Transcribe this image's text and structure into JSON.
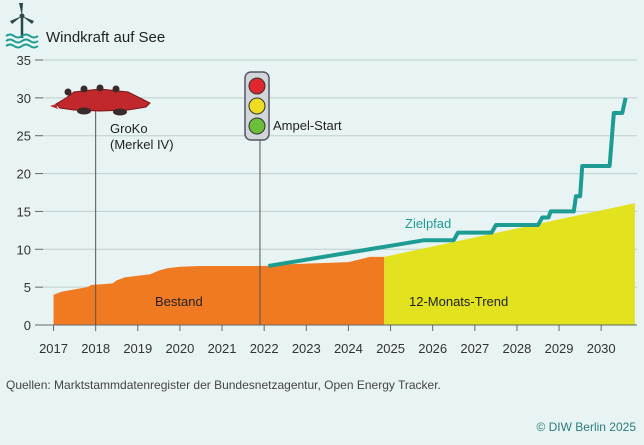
{
  "chart_data": {
    "type": "area",
    "title": "Windkraft auf See",
    "ylim": [
      0,
      35
    ],
    "yticks": [
      0,
      5,
      10,
      15,
      20,
      25,
      30,
      35
    ],
    "xlim": [
      2016.75,
      2030.85
    ],
    "xticks": [
      2017,
      2018,
      2019,
      2020,
      2021,
      2022,
      2023,
      2024,
      2025,
      2026,
      2027,
      2028,
      2029,
      2030
    ],
    "grid": "horizontal",
    "series": [
      {
        "name": "Bestand",
        "kind": "area",
        "color": "#f07a22",
        "points": [
          [
            2017.0,
            4.0
          ],
          [
            2017.2,
            4.4
          ],
          [
            2017.5,
            4.7
          ],
          [
            2017.8,
            5.0
          ],
          [
            2017.9,
            5.3
          ],
          [
            2018.2,
            5.4
          ],
          [
            2018.4,
            5.5
          ],
          [
            2018.5,
            5.9
          ],
          [
            2018.7,
            6.3
          ],
          [
            2019.0,
            6.5
          ],
          [
            2019.3,
            6.7
          ],
          [
            2019.5,
            7.2
          ],
          [
            2019.7,
            7.5
          ],
          [
            2020.0,
            7.7
          ],
          [
            2020.5,
            7.8
          ],
          [
            2021.0,
            7.8
          ],
          [
            2022.0,
            7.8
          ],
          [
            2022.5,
            8.0
          ],
          [
            2023.0,
            8.1
          ],
          [
            2023.5,
            8.2
          ],
          [
            2024.0,
            8.3
          ],
          [
            2024.3,
            8.7
          ],
          [
            2024.5,
            9.0
          ],
          [
            2024.85,
            9.0
          ]
        ]
      },
      {
        "name": "12-Monats-Trend",
        "kind": "area",
        "color": "#e2e21e",
        "points": [
          [
            2024.85,
            9.0
          ],
          [
            2030.8,
            16.1
          ]
        ]
      },
      {
        "name": "Zielpfad",
        "kind": "line",
        "color": "#1d9c94",
        "points": [
          [
            2022.1,
            7.8
          ],
          [
            2025.8,
            11.2
          ],
          [
            2026.5,
            11.2
          ],
          [
            2026.6,
            12.2
          ],
          [
            2027.4,
            12.2
          ],
          [
            2027.5,
            13.2
          ],
          [
            2028.5,
            13.2
          ],
          [
            2028.6,
            14.2
          ],
          [
            2028.75,
            14.2
          ],
          [
            2028.8,
            15.0
          ],
          [
            2029.35,
            15.0
          ],
          [
            2029.4,
            17.0
          ],
          [
            2029.5,
            17.0
          ],
          [
            2029.55,
            21.0
          ],
          [
            2030.2,
            21.0
          ],
          [
            2030.3,
            28.0
          ],
          [
            2030.5,
            28.0
          ],
          [
            2030.58,
            30.0
          ]
        ]
      }
    ],
    "series_labels": {
      "bestand": "Bestand",
      "trend": "12-Monats-Trend",
      "zielpfad": "Zielpfad"
    },
    "annotations": [
      {
        "x": 2018.0,
        "label_line1": "GroKo",
        "label_line2": "(Merkel IV)"
      },
      {
        "x": 2021.9,
        "label_line1": "Ampel-Start"
      }
    ],
    "colors": {
      "background": "#e8f3f3",
      "axis": "#666666",
      "grid": "#bfcfcf",
      "bestand": "#f07a22",
      "trend": "#e2e21e",
      "zielpfad": "#1d9c94",
      "croc": "#c0282c",
      "traffic_light_body": "#d2d6d8"
    },
    "icons": {
      "title_icon": "wind-turbine-icon",
      "groko_icon": "crocodile-icon",
      "ampel_icon": "traffic-light-icon"
    }
  },
  "source": "Quellen: Marktstammdatenregister der Bundesnetzagentur, Open Energy Tracker.",
  "credit": "© DIW Berlin 2025"
}
